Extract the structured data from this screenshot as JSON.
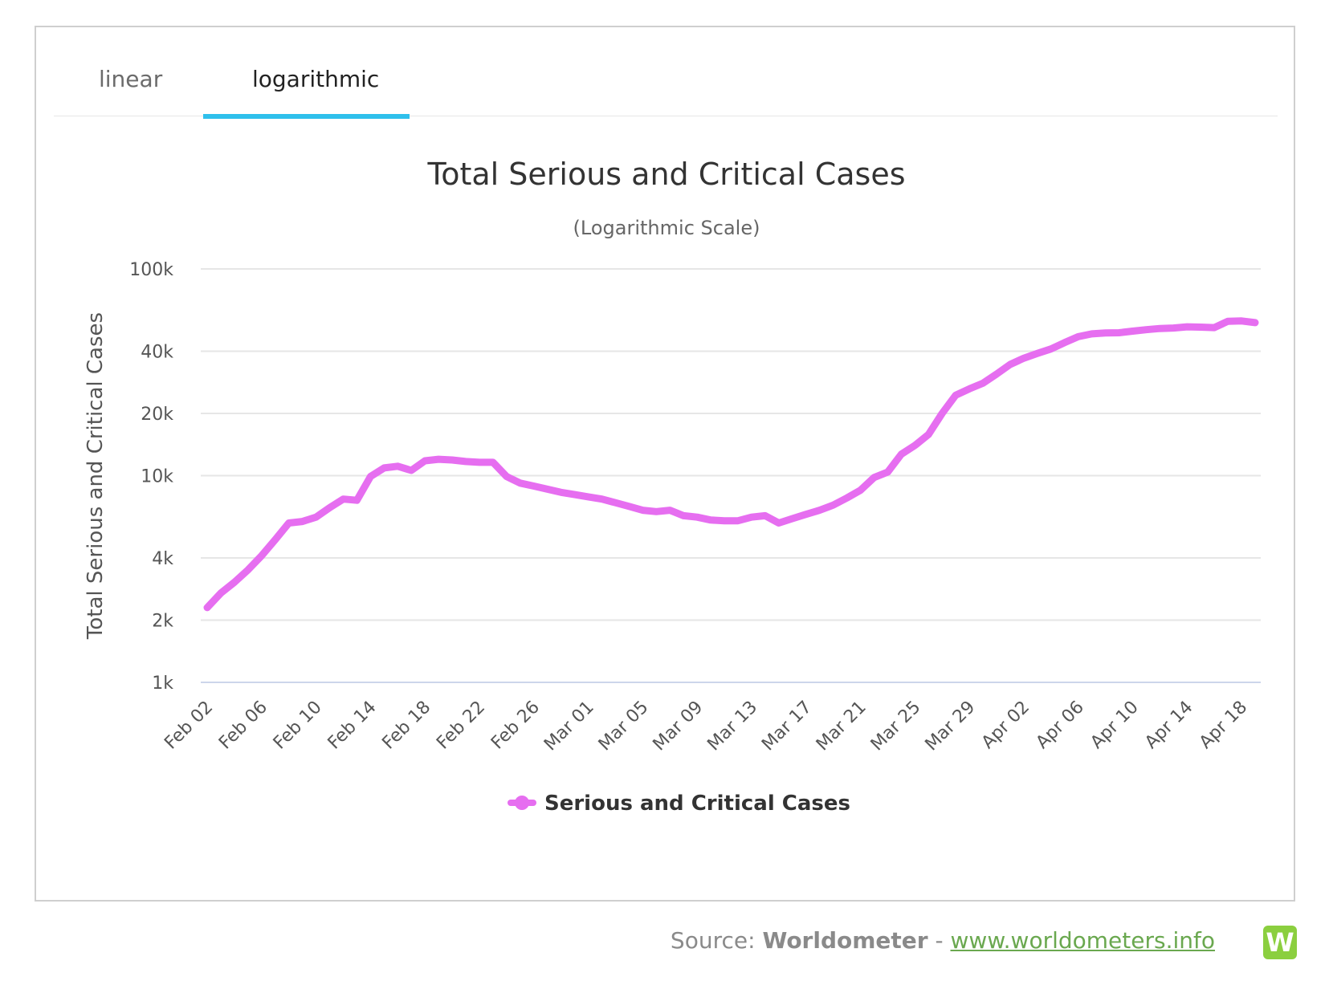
{
  "tabs": [
    {
      "label": "linear",
      "active": false
    },
    {
      "label": "logarithmic",
      "active": true
    }
  ],
  "source": {
    "prefix": "Source: ",
    "name": "Worldometer",
    "separator": " - ",
    "link": "www.worldometers.info",
    "logo_letter": "W"
  },
  "colors": {
    "series": "#e66ef0",
    "tab_underline": "#2fc0ec",
    "grid": "#e6e6e6",
    "link": "#6aa84f",
    "logo": "#8bcf3f"
  },
  "chart_data": {
    "type": "line",
    "scale": "logarithmic",
    "title": "Total Serious and Critical Cases",
    "subtitle": "(Logarithmic Scale)",
    "xlabel": "",
    "ylabel": "Total Serious and Critical Cases",
    "ylim": [
      1000,
      100000
    ],
    "y_ticks": [
      {
        "value": 1000,
        "label": "1k"
      },
      {
        "value": 2000,
        "label": "2k"
      },
      {
        "value": 4000,
        "label": "4k"
      },
      {
        "value": 10000,
        "label": "10k"
      },
      {
        "value": 20000,
        "label": "20k"
      },
      {
        "value": 40000,
        "label": "40k"
      },
      {
        "value": 100000,
        "label": "100k"
      }
    ],
    "x_tick_labels": [
      "Feb 02",
      "Feb 06",
      "Feb 10",
      "Feb 14",
      "Feb 18",
      "Feb 22",
      "Feb 26",
      "Mar 01",
      "Mar 05",
      "Mar 09",
      "Mar 13",
      "Mar 17",
      "Mar 21",
      "Mar 25",
      "Mar 29",
      "Apr 02",
      "Apr 06",
      "Apr 10",
      "Apr 14",
      "Apr 18"
    ],
    "tick_every": 4,
    "legend": "bottom-center",
    "series": [
      {
        "name": "Serious and Critical Cases",
        "values": [
          2300,
          2700,
          3050,
          3500,
          4100,
          4900,
          5900,
          6000,
          6300,
          7000,
          7700,
          7600,
          9900,
          10900,
          11100,
          10600,
          11800,
          12000,
          11900,
          11700,
          11600,
          11600,
          9900,
          9200,
          8900,
          8600,
          8300,
          8100,
          7900,
          7700,
          7400,
          7100,
          6800,
          6700,
          6800,
          6400,
          6300,
          6100,
          6050,
          6050,
          6300,
          6400,
          5900,
          6200,
          6500,
          6800,
          7200,
          7800,
          8500,
          9800,
          10400,
          12700,
          14000,
          15800,
          20000,
          24500,
          26300,
          28000,
          31000,
          34500,
          37000,
          39000,
          41000,
          44000,
          47000,
          48500,
          49000,
          49100,
          50000,
          50800,
          51500,
          51800,
          52500,
          52300,
          52000,
          55800,
          56000,
          55000
        ]
      }
    ]
  }
}
